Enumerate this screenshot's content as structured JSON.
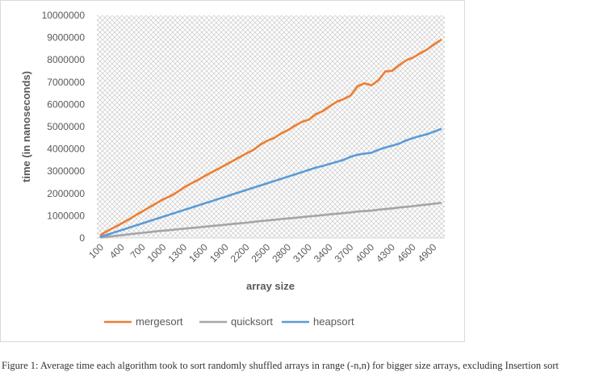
{
  "colors": {
    "mergesort": "#ED7D31",
    "quicksort": "#A5A5A5",
    "heapsort": "#5B9BD5",
    "grid_hatch": "#c8c8c8",
    "axis": "#d9d9d9"
  },
  "chart_data": {
    "type": "line",
    "title": "",
    "xlabel": "array size",
    "ylabel": "time (in nanoseconds)",
    "ylim": [
      0,
      10000000
    ],
    "yticks": [
      0,
      1000000,
      2000000,
      3000000,
      4000000,
      5000000,
      6000000,
      7000000,
      8000000,
      9000000,
      10000000
    ],
    "ytick_labels": [
      "0",
      "1000000",
      "2000000",
      "3000000",
      "4000000",
      "5000000",
      "6000000",
      "7000000",
      "8000000",
      "9000000",
      "10000000"
    ],
    "x": [
      100,
      200,
      300,
      400,
      500,
      600,
      700,
      800,
      900,
      1000,
      1100,
      1200,
      1300,
      1400,
      1500,
      1600,
      1700,
      1800,
      1900,
      2000,
      2100,
      2200,
      2300,
      2400,
      2500,
      2600,
      2700,
      2800,
      2900,
      3000,
      3100,
      3200,
      3300,
      3400,
      3500,
      3600,
      3700,
      3800,
      3900,
      4000,
      4100,
      4200,
      4300,
      4400,
      4500,
      4600,
      4700,
      4800,
      4900,
      5000
    ],
    "xtick_labels": [
      "100",
      "400",
      "700",
      "1000",
      "1300",
      "1600",
      "1900",
      "2200",
      "2500",
      "2800",
      "3100",
      "3400",
      "3700",
      "4000",
      "4300",
      "4600",
      "4900"
    ],
    "grid": "hatched background",
    "legend_position": "bottom",
    "series": [
      {
        "name": "mergesort",
        "values": [
          150000,
          330000,
          490000,
          660000,
          830000,
          1020000,
          1200000,
          1380000,
          1560000,
          1740000,
          1880000,
          2060000,
          2270000,
          2450000,
          2610000,
          2790000,
          2960000,
          3120000,
          3290000,
          3460000,
          3630000,
          3800000,
          3960000,
          4200000,
          4370000,
          4500000,
          4700000,
          4850000,
          5050000,
          5220000,
          5320000,
          5560000,
          5700000,
          5920000,
          6120000,
          6240000,
          6400000,
          6810000,
          6950000,
          6860000,
          7080000,
          7480000,
          7510000,
          7760000,
          7980000,
          8100000,
          8290000,
          8460000,
          8690000,
          8890000
        ]
      },
      {
        "name": "quicksort",
        "values": [
          30000,
          60000,
          95000,
          130000,
          165000,
          200000,
          235000,
          265000,
          300000,
          330000,
          360000,
          390000,
          420000,
          450000,
          480000,
          510000,
          540000,
          570000,
          600000,
          630000,
          660000,
          690000,
          720000,
          760000,
          790000,
          820000,
          850000,
          880000,
          910000,
          940000,
          970000,
          1000000,
          1030000,
          1060000,
          1090000,
          1120000,
          1150000,
          1190000,
          1210000,
          1230000,
          1270000,
          1300000,
          1330000,
          1370000,
          1400000,
          1430000,
          1470000,
          1500000,
          1540000,
          1580000
        ]
      },
      {
        "name": "heapsort",
        "values": [
          60000,
          160000,
          260000,
          360000,
          460000,
          560000,
          660000,
          760000,
          860000,
          960000,
          1060000,
          1160000,
          1260000,
          1360000,
          1460000,
          1560000,
          1660000,
          1760000,
          1860000,
          1960000,
          2060000,
          2160000,
          2260000,
          2360000,
          2460000,
          2560000,
          2660000,
          2760000,
          2860000,
          2960000,
          3060000,
          3160000,
          3240000,
          3330000,
          3420000,
          3510000,
          3650000,
          3740000,
          3790000,
          3830000,
          3960000,
          4060000,
          4150000,
          4240000,
          4380000,
          4490000,
          4580000,
          4660000,
          4770000,
          4890000
        ]
      }
    ]
  },
  "caption": "Figure 1: Average time each algorithm took to sort randomly shuffled arrays in range (-n,n) for bigger size arrays, excluding Insertion sort"
}
